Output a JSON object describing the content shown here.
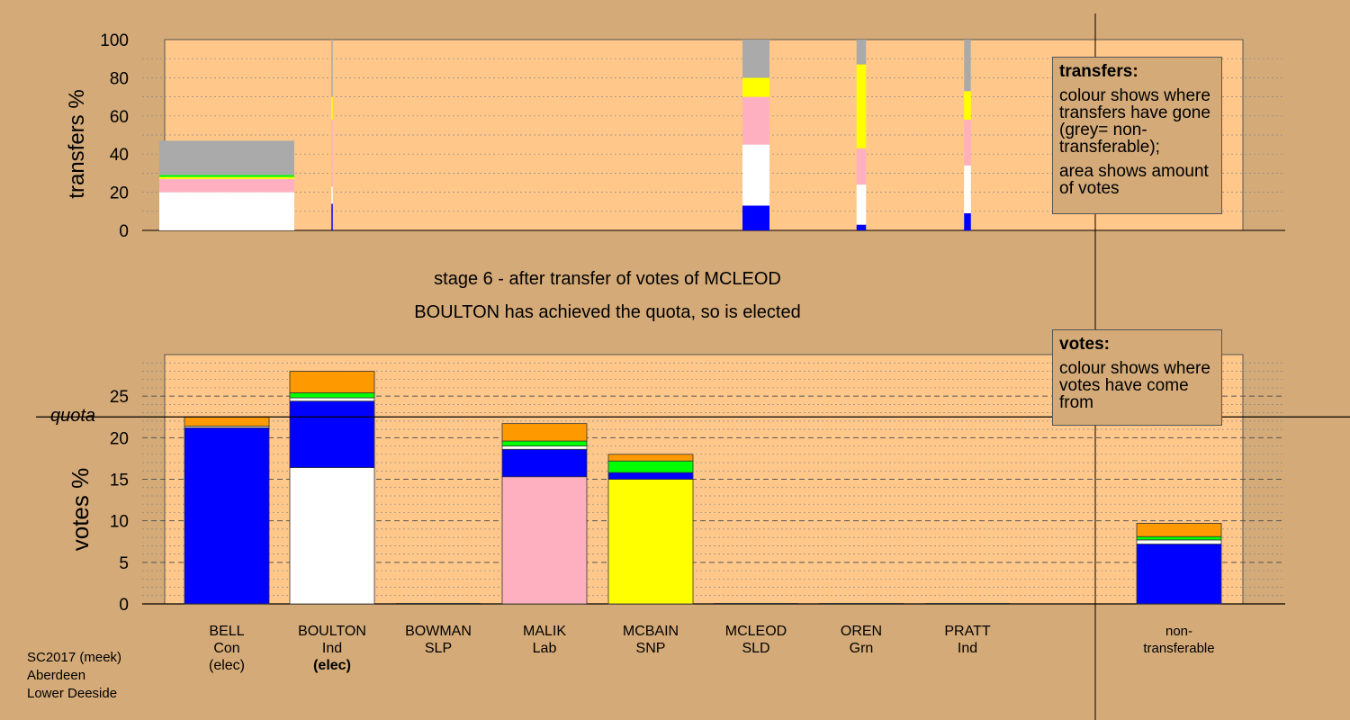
{
  "stage_text": "stage 6 - after transfer of votes of MCLEOD",
  "elected_text": "BOULTON has achieved the quota, so is elected",
  "transfers_legend": {
    "title": "transfers:",
    "line1": "colour shows where transfers have gone (grey= non-transferable);",
    "line2": "area shows amount of votes"
  },
  "votes_legend": {
    "title": "votes:",
    "line1": "colour shows where votes have come from"
  },
  "footer": {
    "line1": "SC2017 (meek)",
    "line2": "Aberdeen",
    "line3": "Lower Deeside"
  },
  "colors": {
    "Con": "#0000ff",
    "Ind": "#ffffff",
    "Lab": "#ffb0c0",
    "SNP": "#ffff00",
    "Grn": "#00ff00",
    "SLD": "#ff9900",
    "nontransferable": "#aaaaaa",
    "plot_bg": "#ffc88a",
    "page_bg": "#d4aa78"
  },
  "chart_data": [
    {
      "type": "bar",
      "name": "transfers",
      "ylabel": "transfers %",
      "ylim": [
        0,
        100
      ],
      "yticks": [
        0,
        20,
        40,
        60,
        80,
        100
      ],
      "note": "stacked transfer percentages; bar width shows amount of votes",
      "bars": [
        {
          "candidate": "BELL",
          "width": 1.0,
          "segments": [
            {
              "party": "Ind",
              "value": 20
            },
            {
              "party": "Lab",
              "value": 7
            },
            {
              "party": "SNP",
              "value": 1
            },
            {
              "party": "Grn",
              "value": 1
            },
            {
              "party": "nontransferable",
              "value": 18
            }
          ]
        },
        {
          "candidate": "BOULTON",
          "width": 0.01,
          "segments": [
            {
              "party": "Con",
              "value": 14
            },
            {
              "party": "Ind",
              "value": 9
            },
            {
              "party": "Lab",
              "value": 35
            },
            {
              "party": "SNP",
              "value": 12
            },
            {
              "party": "nontransferable",
              "value": 30
            }
          ]
        },
        {
          "candidate": "MCLEOD",
          "width": 0.2,
          "segments": [
            {
              "party": "Con",
              "value": 13
            },
            {
              "party": "Ind",
              "value": 32
            },
            {
              "party": "Lab",
              "value": 25
            },
            {
              "party": "SNP",
              "value": 10
            },
            {
              "party": "nontransferable",
              "value": 20
            }
          ]
        },
        {
          "candidate": "OREN",
          "width": 0.07,
          "segments": [
            {
              "party": "Con",
              "value": 3
            },
            {
              "party": "Ind",
              "value": 21
            },
            {
              "party": "Lab",
              "value": 19
            },
            {
              "party": "SNP",
              "value": 44
            },
            {
              "party": "nontransferable",
              "value": 13
            }
          ]
        },
        {
          "candidate": "PRATT",
          "width": 0.05,
          "segments": [
            {
              "party": "Con",
              "value": 9
            },
            {
              "party": "Ind",
              "value": 25
            },
            {
              "party": "Lab",
              "value": 24
            },
            {
              "party": "SNP",
              "value": 15
            },
            {
              "party": "nontransferable",
              "value": 27
            }
          ]
        }
      ]
    },
    {
      "type": "bar",
      "name": "votes",
      "ylabel": "votes %",
      "ylim": [
        0,
        30
      ],
      "yticks": [
        0,
        5,
        10,
        15,
        20,
        25
      ],
      "quota": 22.5,
      "quota_label": "quota",
      "categories": [
        {
          "name": "BELL",
          "party": "Con",
          "status": "(elec)"
        },
        {
          "name": "BOULTON",
          "party": "Ind",
          "status": "(elec)"
        },
        {
          "name": "BOWMAN",
          "party": "SLP",
          "status": ""
        },
        {
          "name": "MALIK",
          "party": "Lab",
          "status": ""
        },
        {
          "name": "MCBAIN",
          "party": "SNP",
          "status": ""
        },
        {
          "name": "MCLEOD",
          "party": "SLD",
          "status": ""
        },
        {
          "name": "OREN",
          "party": "Grn",
          "status": ""
        },
        {
          "name": "PRATT",
          "party": "Ind",
          "status": ""
        },
        {
          "name": "non-",
          "party": "transferable",
          "status": ""
        }
      ],
      "stacks": [
        [
          {
            "party": "Con",
            "value": 21.2
          },
          {
            "party": "Ind",
            "value": 0.2
          },
          {
            "party": "SLD",
            "value": 1.1
          }
        ],
        [
          {
            "party": "Ind",
            "value": 16.4
          },
          {
            "party": "Con",
            "value": 8.0
          },
          {
            "party": "Ind",
            "value": 0.4
          },
          {
            "party": "Grn",
            "value": 0.6
          },
          {
            "party": "SLD",
            "value": 2.6
          }
        ],
        [],
        [
          {
            "party": "Lab",
            "value": 15.3
          },
          {
            "party": "Con",
            "value": 3.3
          },
          {
            "party": "Ind",
            "value": 0.4
          },
          {
            "party": "Grn",
            "value": 0.6
          },
          {
            "party": "SLD",
            "value": 2.1
          }
        ],
        [
          {
            "party": "SNP",
            "value": 15.0
          },
          {
            "party": "Con",
            "value": 0.8
          },
          {
            "party": "Grn",
            "value": 1.4
          },
          {
            "party": "SLD",
            "value": 0.8
          }
        ],
        [],
        [],
        [],
        [
          {
            "party": "Con",
            "value": 7.2
          },
          {
            "party": "Ind",
            "value": 0.5
          },
          {
            "party": "Grn",
            "value": 0.4
          },
          {
            "party": "SLD",
            "value": 1.6
          }
        ]
      ]
    }
  ]
}
